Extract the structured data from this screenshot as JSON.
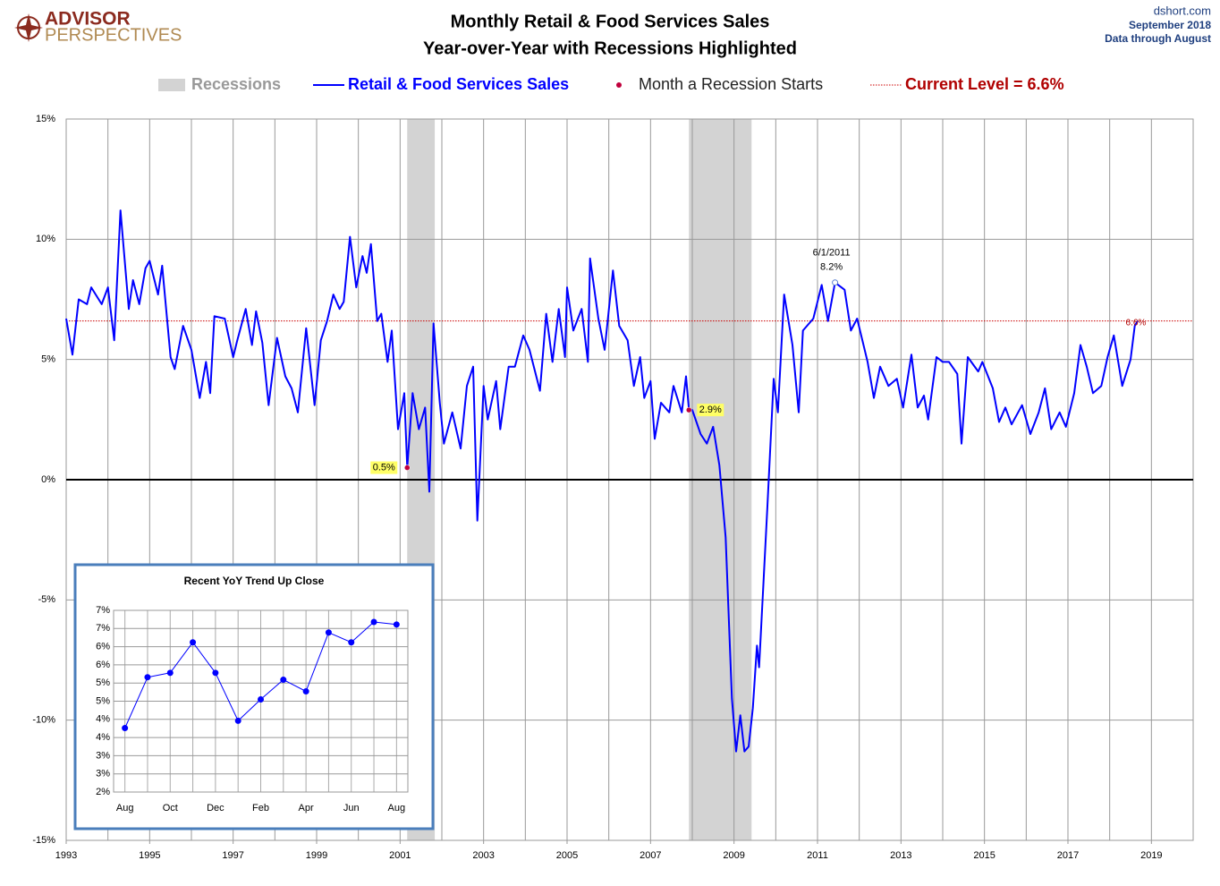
{
  "header": {
    "logo_top": "ADVISOR",
    "logo_bottom": "PERSPECTIVES",
    "site": "dshort.com",
    "date": "September 2018",
    "note": "Data through August"
  },
  "chart_data": [
    {
      "type": "line",
      "title": "Monthly Retail & Food Services Sales",
      "subtitle": "Year-over-Year with Recessions Highlighted",
      "x": [
        1993.0,
        1993.15,
        1993.3,
        1993.5,
        1993.6,
        1993.85,
        1994.0,
        1994.15,
        1994.3,
        1994.5,
        1994.6,
        1994.75,
        1994.9,
        1995.0,
        1995.2,
        1995.3,
        1995.5,
        1995.6,
        1995.8,
        1996.0,
        1996.2,
        1996.35,
        1996.45,
        1996.55,
        1996.8,
        1997.0,
        1997.1,
        1997.3,
        1997.45,
        1997.55,
        1997.7,
        1997.85,
        1998.05,
        1998.25,
        1998.4,
        1998.55,
        1998.75,
        1998.95,
        1999.1,
        1999.25,
        1999.4,
        1999.55,
        1999.65,
        1999.8,
        1999.95,
        2000.1,
        2000.2,
        2000.3,
        2000.45,
        2000.55,
        2000.7,
        2000.8,
        2000.95,
        2001.1,
        2001.17,
        2001.3,
        2001.45,
        2001.6,
        2001.7,
        2001.8,
        2001.95,
        2002.05,
        2002.25,
        2002.45,
        2002.6,
        2002.75,
        2002.85,
        2003.0,
        2003.1,
        2003.3,
        2003.4,
        2003.6,
        2003.75,
        2003.95,
        2004.1,
        2004.35,
        2004.5,
        2004.65,
        2004.8,
        2004.95,
        2005.0,
        2005.15,
        2005.35,
        2005.5,
        2005.55,
        2005.75,
        2005.9,
        2006.1,
        2006.25,
        2006.45,
        2006.6,
        2006.75,
        2006.85,
        2007.0,
        2007.1,
        2007.25,
        2007.45,
        2007.55,
        2007.75,
        2007.85,
        2007.92,
        2008.0,
        2008.2,
        2008.35,
        2008.5,
        2008.65,
        2008.8,
        2008.95,
        2009.05,
        2009.15,
        2009.25,
        2009.35,
        2009.45,
        2009.55,
        2009.6,
        2009.8,
        2009.95,
        2010.05,
        2010.2,
        2010.4,
        2010.55,
        2010.65,
        2010.9,
        2011.1,
        2011.25,
        2011.42,
        2011.65,
        2011.8,
        2011.95,
        2012.2,
        2012.35,
        2012.5,
        2012.7,
        2012.9,
        2013.05,
        2013.25,
        2013.4,
        2013.55,
        2013.65,
        2013.85,
        2014.0,
        2014.15,
        2014.35,
        2014.45,
        2014.6,
        2014.85,
        2014.95,
        2015.2,
        2015.35,
        2015.5,
        2015.65,
        2015.9,
        2016.1,
        2016.3,
        2016.45,
        2016.6,
        2016.8,
        2016.95,
        2017.15,
        2017.3,
        2017.45,
        2017.6,
        2017.8,
        2017.95,
        2018.1,
        2018.3,
        2018.5,
        2018.6,
        2018.67
      ],
      "series": [
        {
          "name": "Retail & Food Services Sales",
          "color": "#0000ff",
          "values": [
            6.7,
            5.2,
            7.5,
            7.3,
            8.0,
            7.3,
            8.0,
            5.8,
            11.2,
            7.1,
            8.3,
            7.3,
            8.8,
            9.1,
            7.7,
            8.9,
            5.1,
            4.6,
            6.4,
            5.4,
            3.4,
            4.9,
            3.6,
            6.8,
            6.7,
            5.1,
            5.8,
            7.1,
            5.6,
            7.0,
            5.7,
            3.1,
            5.9,
            4.3,
            3.8,
            2.8,
            6.3,
            3.1,
            5.8,
            6.6,
            7.7,
            7.1,
            7.4,
            10.1,
            8.0,
            9.3,
            8.6,
            9.8,
            6.6,
            6.9,
            4.9,
            6.2,
            2.1,
            3.6,
            0.5,
            3.6,
            2.1,
            3.0,
            -0.5,
            6.5,
            3.2,
            1.5,
            2.8,
            1.3,
            3.9,
            4.7,
            -1.7,
            3.9,
            2.5,
            4.1,
            2.1,
            4.7,
            4.7,
            6.0,
            5.4,
            3.7,
            6.9,
            4.9,
            7.1,
            5.1,
            8.0,
            6.2,
            7.1,
            4.9,
            9.2,
            6.7,
            5.4,
            8.7,
            6.4,
            5.8,
            3.9,
            5.1,
            3.4,
            4.1,
            1.7,
            3.2,
            2.8,
            3.9,
            2.8,
            4.3,
            2.9,
            2.9,
            1.9,
            1.5,
            2.2,
            0.6,
            -2.4,
            -9.1,
            -11.3,
            -9.8,
            -11.3,
            -11.1,
            -9.5,
            -6.9,
            -7.8,
            -1.1,
            4.2,
            2.8,
            7.7,
            5.6,
            2.8,
            6.2,
            6.7,
            8.1,
            6.6,
            8.2,
            7.9,
            6.2,
            6.7,
            4.9,
            3.4,
            4.7,
            3.9,
            4.2,
            3.0,
            5.2,
            3.0,
            3.5,
            2.5,
            5.1,
            4.9,
            4.9,
            4.4,
            1.5,
            5.1,
            4.5,
            4.9,
            3.8,
            2.4,
            3.0,
            2.3,
            3.1,
            1.9,
            2.8,
            3.8,
            2.1,
            2.8,
            2.2,
            3.6,
            5.6,
            4.7,
            3.6,
            3.9,
            5.1,
            6.0,
            3.9,
            5.0,
            6.4,
            6.6
          ]
        }
      ],
      "recessions": {
        "name": "Recessions",
        "color": "#d3d3d3",
        "ranges": [
          [
            2001.17,
            2001.83
          ],
          [
            2007.92,
            2009.42
          ]
        ]
      },
      "recession_starts": {
        "name": "Month a Recession Starts",
        "color": "#c0003c",
        "x": [
          2001.17,
          2007.92
        ],
        "values": [
          0.5,
          2.9
        ],
        "value_labels": [
          "0.5%",
          "2.9%"
        ]
      },
      "current_level": {
        "name": "Current Level = 6.6%",
        "value": 6.6,
        "value_label": "6.6%",
        "color": "#cc0000"
      },
      "annotation": {
        "x": 2011.42,
        "value": 8.2,
        "date_label": "6/1/2011",
        "value_label": "8.2%"
      },
      "xlim": [
        1993,
        2020
      ],
      "xticks": [
        1993,
        1995,
        1997,
        1999,
        2001,
        2003,
        2005,
        2007,
        2009,
        2011,
        2013,
        2015,
        2017,
        2019
      ],
      "ylim": [
        -15,
        15
      ],
      "yticks": [
        {
          "value": -15,
          "label": "-15%"
        },
        {
          "value": -10,
          "label": "-10%"
        },
        {
          "value": -5,
          "label": "-5%"
        },
        {
          "value": 0,
          "label": "0%"
        },
        {
          "value": 5,
          "label": "5%"
        },
        {
          "value": 10,
          "label": "10%"
        },
        {
          "value": 15,
          "label": "15%"
        }
      ],
      "grid": true
    },
    {
      "type": "line",
      "title": "Recent  YoY Trend Up Close",
      "categories": [
        "Aug",
        null,
        "Oct",
        null,
        "Dec",
        null,
        "Feb",
        null,
        "Apr",
        null,
        "Jun",
        null,
        "Aug"
      ],
      "series": [
        {
          "color": "#0000ff",
          "values": [
            3.76,
            5.16,
            5.28,
            6.12,
            5.28,
            3.96,
            4.55,
            5.09,
            4.77,
            6.39,
            6.12,
            6.68,
            6.61
          ]
        }
      ],
      "ylim": [
        2,
        7
      ],
      "yticks": [
        {
          "value": 2,
          "label": "2%"
        },
        {
          "value": 2.5,
          "label": "3%"
        },
        {
          "value": 3,
          "label": "3%"
        },
        {
          "value": 3.5,
          "label": "4%"
        },
        {
          "value": 4,
          "label": "4%"
        },
        {
          "value": 4.5,
          "label": "5%"
        },
        {
          "value": 5,
          "label": "5%"
        },
        {
          "value": 5.5,
          "label": "6%"
        },
        {
          "value": 6,
          "label": "6%"
        },
        {
          "value": 6.5,
          "label": "7%"
        },
        {
          "value": 7,
          "label": "7%"
        }
      ],
      "grid": true
    }
  ]
}
